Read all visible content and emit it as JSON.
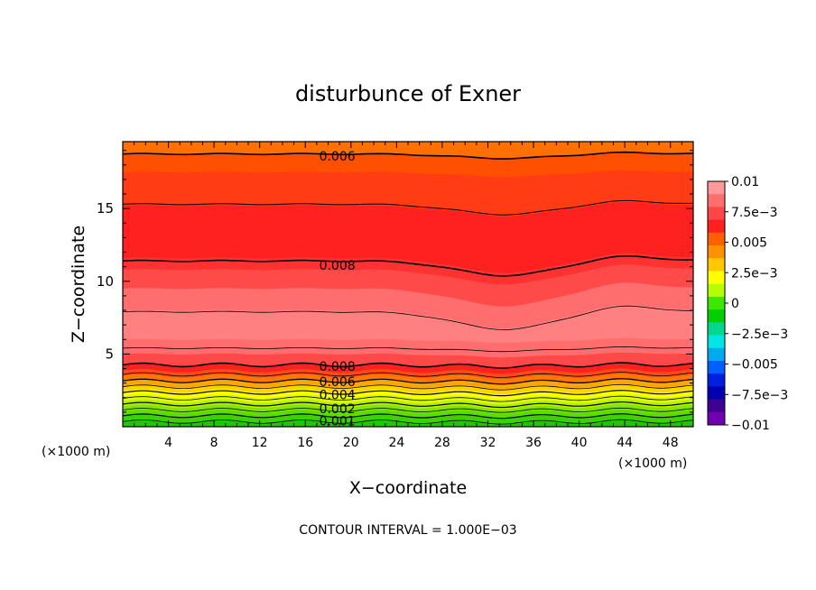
{
  "chart_data": {
    "type": "contour",
    "title": "disturbunce of Exner",
    "xlabel": "X−coordinate",
    "ylabel": "Z−coordinate",
    "x_unit_note": "(×1000 m)",
    "y_unit_note": "(×1000 m)",
    "xlim": [
      0,
      50
    ],
    "ylim": [
      0,
      19.6
    ],
    "xticks": [
      4,
      8,
      12,
      16,
      20,
      24,
      28,
      32,
      36,
      40,
      44,
      48
    ],
    "yticks": [
      5,
      10,
      15
    ],
    "footer": "CONTOUR INTERVAL = 1.000E−03",
    "colorbar": {
      "range": [
        -0.01,
        0.01
      ],
      "labels": [
        "0.01",
        "7.5e−3",
        "0.005",
        "2.5e−3",
        "0",
        "−2.5e−3",
        "−0.005",
        "−7.5e−3",
        "−0.01"
      ],
      "colors": [
        "#ff9999",
        "#ff6e6e",
        "#ff4646",
        "#ff2020",
        "#ff6000",
        "#ff9000",
        "#ffc800",
        "#ffff00",
        "#b4ff00",
        "#3ce800",
        "#00d000",
        "#00d890",
        "#00e6e6",
        "#00aaf0",
        "#0060ff",
        "#0020e0",
        "#0000b0",
        "#400090",
        "#7000b0"
      ]
    },
    "contour_labels": [
      {
        "text": "0.006",
        "x": 18.8,
        "z": 18.6
      },
      {
        "text": "0.008",
        "x": 18.8,
        "z": 11.1
      },
      {
        "text": "0.008",
        "x": 18.8,
        "z": 4.15
      },
      {
        "text": "0.006",
        "x": 18.8,
        "z": 3.1
      },
      {
        "text": "0.004",
        "x": 18.8,
        "z": 2.2
      },
      {
        "text": "0.002",
        "x": 18.8,
        "z": 1.25
      },
      {
        "text": "0.001",
        "x": 18.8,
        "z": 0.4
      }
    ],
    "bands": [
      {
        "z0": 0.0,
        "z1": 0.35,
        "color": "#1ec800"
      },
      {
        "z0": 0.35,
        "z1": 0.7,
        "color": "#3cd200"
      },
      {
        "z0": 0.7,
        "z1": 1.05,
        "color": "#5ade00"
      },
      {
        "z0": 1.05,
        "z1": 1.4,
        "color": "#82e600"
      },
      {
        "z0": 1.4,
        "z1": 1.75,
        "color": "#b4f000"
      },
      {
        "z0": 1.75,
        "z1": 2.1,
        "color": "#dcfa00"
      },
      {
        "z0": 2.1,
        "z1": 2.45,
        "color": "#ffff00"
      },
      {
        "z0": 2.45,
        "z1": 2.8,
        "color": "#ffd200"
      },
      {
        "z0": 2.8,
        "z1": 3.15,
        "color": "#ffa500"
      },
      {
        "z0": 3.15,
        "z1": 3.5,
        "color": "#ff7800"
      },
      {
        "z0": 3.5,
        "z1": 3.85,
        "color": "#ff4b14"
      },
      {
        "z0": 3.85,
        "z1": 4.25,
        "color": "#ff2020"
      },
      {
        "z0": 4.25,
        "z1": 5.0,
        "color": "#ff4848"
      },
      {
        "z0": 5.0,
        "z1": 6.0,
        "color": "#ff6e6e"
      },
      {
        "z0": 6.0,
        "z1": 8.0,
        "color": "#ff8080"
      },
      {
        "z0": 8.0,
        "z1": 9.5,
        "color": "#ff6e6e"
      },
      {
        "z0": 9.5,
        "z1": 10.8,
        "color": "#ff4a4a"
      },
      {
        "z0": 10.8,
        "z1": 11.6,
        "color": "#ff3232"
      },
      {
        "z0": 11.6,
        "z1": 15.2,
        "color": "#ff2020"
      },
      {
        "z0": 15.2,
        "z1": 17.5,
        "color": "#ff3c14"
      },
      {
        "z0": 17.5,
        "z1": 18.8,
        "color": "#ff5000"
      },
      {
        "z0": 18.8,
        "z1": 19.6,
        "color": "#ff7000"
      }
    ],
    "contour_lines": [
      {
        "z": 18.75,
        "width": 1.6,
        "dip": 0.3
      },
      {
        "z": 15.3,
        "width": 1.0,
        "dip": 0.7
      },
      {
        "z": 11.4,
        "width": 1.6,
        "dip": 1.0
      },
      {
        "z": 7.9,
        "width": 0.8,
        "dip": 1.2
      },
      {
        "z": 5.4,
        "width": 0.8,
        "dip": 0.2
      },
      {
        "z": 4.25,
        "width": 1.6,
        "dip": 0.1
      },
      {
        "z": 3.6,
        "width": 0.8,
        "dip": 0.1
      },
      {
        "z": 3.15,
        "width": 1.3,
        "dip": 0.1
      },
      {
        "z": 2.75,
        "width": 0.8,
        "dip": 0.1
      },
      {
        "z": 2.35,
        "width": 1.2,
        "dip": 0.1
      },
      {
        "z": 1.95,
        "width": 0.8,
        "dip": 0.1
      },
      {
        "z": 1.55,
        "width": 1.2,
        "dip": 0.1
      },
      {
        "z": 1.15,
        "width": 0.8,
        "dip": 0.05
      },
      {
        "z": 0.75,
        "width": 1.2,
        "dip": 0.05
      },
      {
        "z": 0.35,
        "width": 0.8,
        "dip": 0.05
      }
    ]
  }
}
